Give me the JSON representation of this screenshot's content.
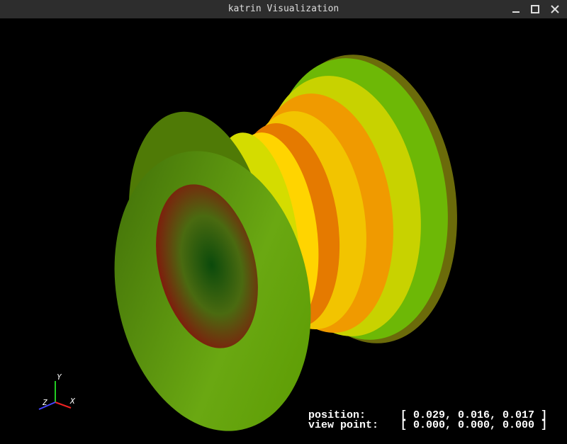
{
  "window": {
    "title": "katrin Visualization"
  },
  "axes": {
    "x": "X",
    "y": "Y",
    "z": "Z"
  },
  "status": {
    "position_label": "position:",
    "position_value": "[ 0.029, 0.016, 0.017 ]",
    "view_point_label": "view point:",
    "view_point_value": "[ 0.000, 0.000, 0.000 ]"
  }
}
